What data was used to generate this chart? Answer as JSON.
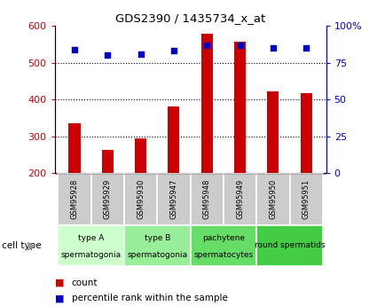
{
  "title": "GDS2390 / 1435734_x_at",
  "samples": [
    "GSM95928",
    "GSM95929",
    "GSM95930",
    "GSM95947",
    "GSM95948",
    "GSM95949",
    "GSM95950",
    "GSM95951"
  ],
  "counts": [
    335,
    262,
    295,
    380,
    580,
    558,
    422,
    418
  ],
  "percentiles": [
    84,
    80,
    81,
    83,
    87,
    87,
    85,
    85
  ],
  "ylim_left": [
    200,
    600
  ],
  "ylim_right": [
    0,
    100
  ],
  "yticks_left": [
    200,
    300,
    400,
    500,
    600
  ],
  "yticks_right": [
    0,
    25,
    50,
    75,
    100
  ],
  "yticklabels_right": [
    "0",
    "25",
    "50",
    "75",
    "100%"
  ],
  "bar_color": "#cc0000",
  "dot_color": "#0000cc",
  "cell_types": [
    {
      "label": "type A\nspermatogonia",
      "samples": [
        0,
        1
      ],
      "color": "#ccffcc"
    },
    {
      "label": "type B\nspermatogonia",
      "samples": [
        2,
        3
      ],
      "color": "#99ee99"
    },
    {
      "label": "pachytene\nspermatocytes",
      "samples": [
        4,
        5
      ],
      "color": "#66dd66"
    },
    {
      "label": "round spermatids",
      "samples": [
        6,
        7
      ],
      "color": "#44cc44"
    }
  ],
  "cell_type_label": "cell type",
  "legend_count_label": "count",
  "legend_pct_label": "percentile rank within the sample",
  "axis_color_left": "#cc0000",
  "axis_color_right": "#0000cc",
  "sample_box_color": "#cccccc",
  "bar_bottom": 200,
  "bar_width": 0.35
}
